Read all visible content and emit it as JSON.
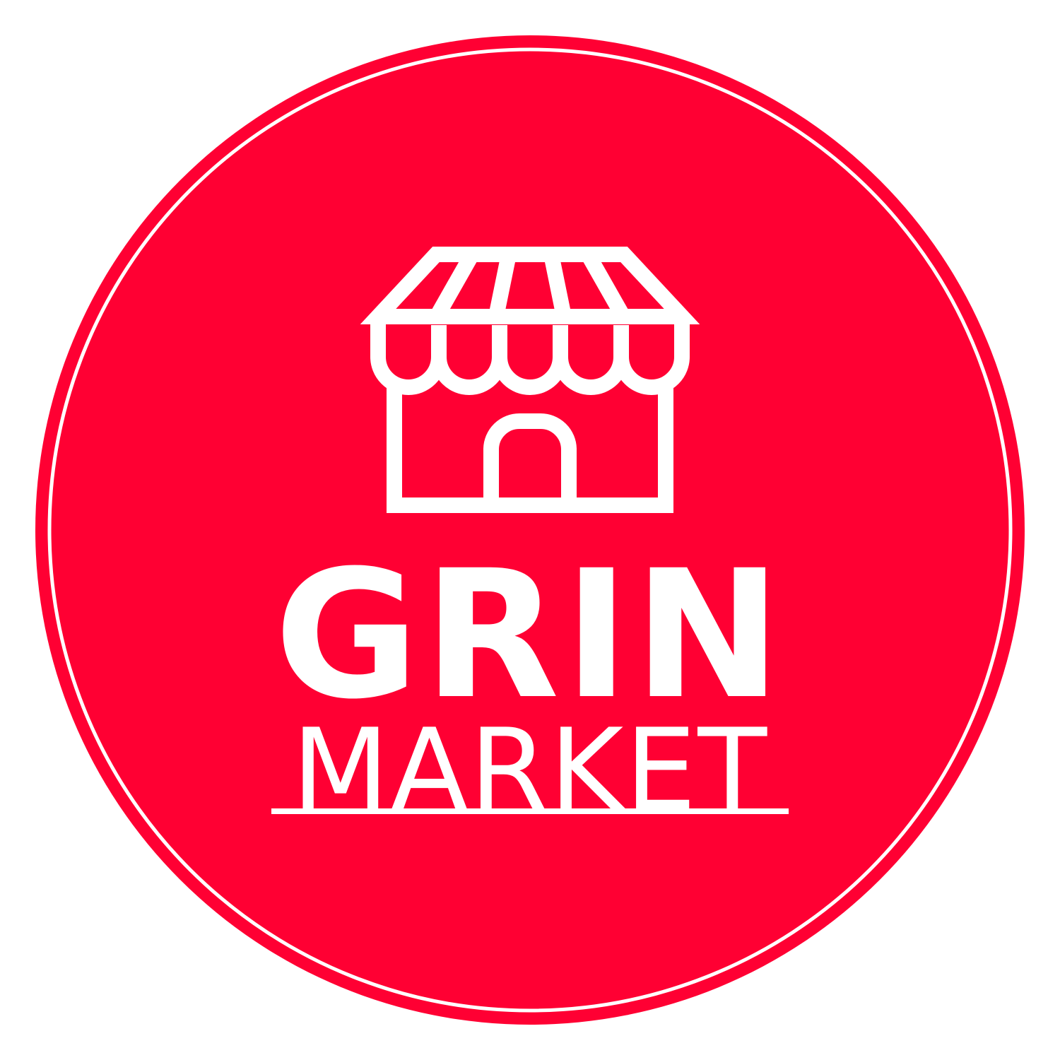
{
  "brand": {
    "name": "GRIN",
    "tagline": "MARKET"
  },
  "icons": {
    "emblem": "storefront-icon"
  },
  "colors": {
    "background": "#ffffff",
    "badge_red": "#ff0033",
    "foreground": "#ffffff"
  }
}
